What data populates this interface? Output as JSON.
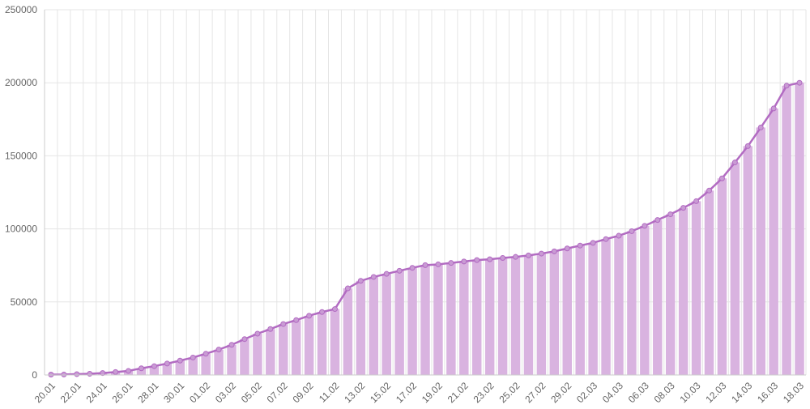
{
  "chart_data": {
    "type": "bar",
    "combo": "bar+line",
    "title": "",
    "xlabel": "",
    "ylabel": "",
    "ylim": [
      0,
      250000
    ],
    "yticks": [
      0,
      50000,
      100000,
      150000,
      200000,
      250000
    ],
    "grid": true,
    "legend": "none",
    "colors": {
      "bar": "#d9b3e0",
      "line": "#b26bc2",
      "grid": "#e5e5e5",
      "text": "#666666"
    },
    "categories": [
      "20.01",
      "21.01",
      "22.01",
      "23.01",
      "24.01",
      "25.01",
      "26.01",
      "27.01",
      "28.01",
      "29.01",
      "30.01",
      "31.01",
      "01.02",
      "02.02",
      "03.02",
      "04.02",
      "05.02",
      "06.02",
      "07.02",
      "08.02",
      "09.02",
      "10.02",
      "11.02",
      "12.02",
      "13.02",
      "14.02",
      "15.02",
      "16.02",
      "17.02",
      "18.02",
      "19.02",
      "20.02",
      "21.02",
      "22.02",
      "23.02",
      "24.02",
      "25.02",
      "26.02",
      "27.02",
      "28.02",
      "29.02",
      "01.03",
      "02.03",
      "03.03",
      "04.03",
      "05.03",
      "06.03",
      "07.03",
      "08.03",
      "09.03",
      "10.03",
      "11.03",
      "12.03",
      "13.03",
      "14.03",
      "15.03",
      "16.03",
      "17.03",
      "18.03"
    ],
    "tick_labels": [
      "20.01",
      "22.01",
      "24.01",
      "26.01",
      "28.01",
      "30.01",
      "01.02",
      "03.02",
      "05.02",
      "07.02",
      "09.02",
      "11.02",
      "13.02",
      "15.02",
      "17.02",
      "19.02",
      "21.02",
      "23.02",
      "25.02",
      "27.02",
      "29.02",
      "02.03",
      "04.03",
      "06.03",
      "08.03",
      "10.03",
      "12.03",
      "14.03",
      "16.03",
      "18.03"
    ],
    "values": [
      282,
      314,
      579,
      845,
      1317,
      2015,
      2800,
      4581,
      6058,
      7813,
      9821,
      11948,
      14551,
      17389,
      20628,
      24553,
      28276,
      31439,
      34876,
      37552,
      40553,
      43099,
      45134,
      59283,
      64437,
      67100,
      69197,
      71329,
      73332,
      75184,
      75700,
      76677,
      77673,
      78651,
      79205,
      80087,
      80828,
      81820,
      83112,
      84615,
      86604,
      88585,
      90443,
      93016,
      95314,
      98425,
      102050,
      106099,
      109991,
      114381,
      118948,
      126214,
      134576,
      145483,
      156653,
      169387,
      182420,
      198006,
      200000
    ]
  }
}
